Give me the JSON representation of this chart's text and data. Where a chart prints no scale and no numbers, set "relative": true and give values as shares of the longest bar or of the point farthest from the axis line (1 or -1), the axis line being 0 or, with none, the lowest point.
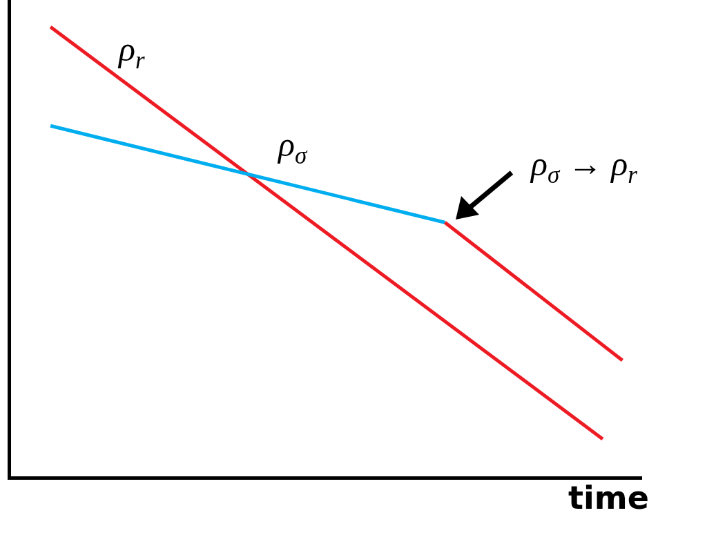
{
  "chart_data": {
    "type": "line",
    "relative": true,
    "xlabel": "time",
    "legend": false,
    "marker": "none",
    "line_style": "solid",
    "categories": [
      null,
      null,
      null,
      null,
      null,
      null,
      null,
      null,
      null,
      null,
      null,
      null,
      null,
      null,
      null,
      null,
      null,
      null,
      null,
      null,
      null,
      null,
      null,
      null,
      null,
      null,
      null,
      null,
      null,
      null
    ],
    "series": [
      {
        "name": "ρ$_{r}$",
        "color": "#ed1c24",
        "values": [
          1,
          null,
          null,
          null,
          null,
          null,
          null,
          null,
          null,
          null,
          null,
          null,
          null,
          null,
          null,
          null,
          null,
          null,
          null,
          null,
          null,
          null,
          null,
          null,
          null,
          null,
          null,
          null,
          0.083,
          null
        ]
      },
      {
        "name": "ρ$_{σ}$",
        "color": "#00aeef",
        "values": [
          0.78,
          null,
          null,
          null,
          null,
          null,
          null,
          null,
          null,
          null,
          null,
          null,
          null,
          null,
          null,
          null,
          null,
          null,
          null,
          null,
          0.565,
          null,
          null,
          null,
          null,
          null,
          null,
          null,
          null,
          null
        ]
      },
      {
        "color": "#ed1c24",
        "values": [
          null,
          null,
          null,
          null,
          null,
          null,
          null,
          null,
          null,
          null,
          null,
          null,
          null,
          null,
          null,
          null,
          null,
          null,
          null,
          null,
          0.565,
          null,
          null,
          null,
          null,
          null,
          null,
          null,
          null,
          0.258
        ]
      }
    ],
    "annotations": [
      "ρ$_{σ}$ → ρ$_{r}$"
    ]
  }
}
